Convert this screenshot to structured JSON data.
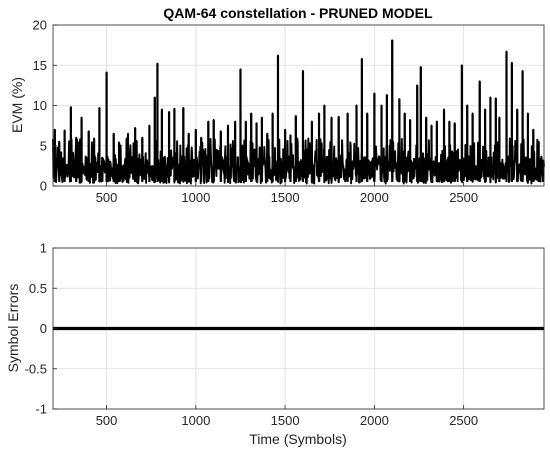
{
  "chart_data": [
    {
      "type": "line",
      "title": "QAM-64 constellation - PRUNED MODEL",
      "xlabel": "",
      "ylabel": "EVM (%)",
      "xlim": [
        200,
        2950
      ],
      "ylim": [
        0,
        20
      ],
      "xticks": [
        500,
        1000,
        1500,
        2000,
        2500
      ],
      "yticks": [
        0,
        5,
        10,
        15,
        20
      ],
      "grid": true,
      "series_color": "#000000",
      "peaks": [
        {
          "x": 210,
          "y": 7.0
        },
        {
          "x": 235,
          "y": 5.5
        },
        {
          "x": 265,
          "y": 6.9
        },
        {
          "x": 300,
          "y": 9.8
        },
        {
          "x": 330,
          "y": 6.0
        },
        {
          "x": 360,
          "y": 8.5
        },
        {
          "x": 400,
          "y": 6.8
        },
        {
          "x": 430,
          "y": 5.9
        },
        {
          "x": 460,
          "y": 9.7
        },
        {
          "x": 500,
          "y": 14.1
        },
        {
          "x": 540,
          "y": 6.5
        },
        {
          "x": 570,
          "y": 5.4
        },
        {
          "x": 620,
          "y": 6.5
        },
        {
          "x": 660,
          "y": 7.2
        },
        {
          "x": 700,
          "y": 6.0
        },
        {
          "x": 740,
          "y": 7.5
        },
        {
          "x": 770,
          "y": 11.0
        },
        {
          "x": 785,
          "y": 15.2
        },
        {
          "x": 810,
          "y": 9.5
        },
        {
          "x": 850,
          "y": 9.2
        },
        {
          "x": 880,
          "y": 9.6
        },
        {
          "x": 930,
          "y": 9.7
        },
        {
          "x": 960,
          "y": 6.5
        },
        {
          "x": 1000,
          "y": 7.0
        },
        {
          "x": 1030,
          "y": 6.0
        },
        {
          "x": 1070,
          "y": 8.0
        },
        {
          "x": 1100,
          "y": 8.2
        },
        {
          "x": 1140,
          "y": 6.8
        },
        {
          "x": 1180,
          "y": 7.5
        },
        {
          "x": 1220,
          "y": 8.0
        },
        {
          "x": 1250,
          "y": 14.5
        },
        {
          "x": 1280,
          "y": 8.0
        },
        {
          "x": 1310,
          "y": 9.0
        },
        {
          "x": 1340,
          "y": 7.8
        },
        {
          "x": 1370,
          "y": 8.5
        },
        {
          "x": 1400,
          "y": 6.5
        },
        {
          "x": 1430,
          "y": 9.0
        },
        {
          "x": 1460,
          "y": 16.2
        },
        {
          "x": 1500,
          "y": 7.0
        },
        {
          "x": 1530,
          "y": 6.3
        },
        {
          "x": 1560,
          "y": 8.7
        },
        {
          "x": 1600,
          "y": 14.3
        },
        {
          "x": 1650,
          "y": 8.0
        },
        {
          "x": 1690,
          "y": 9.0
        },
        {
          "x": 1720,
          "y": 10.0
        },
        {
          "x": 1760,
          "y": 8.5
        },
        {
          "x": 1800,
          "y": 8.6
        },
        {
          "x": 1850,
          "y": 9.0
        },
        {
          "x": 1900,
          "y": 10.0
        },
        {
          "x": 1930,
          "y": 15.8
        },
        {
          "x": 1960,
          "y": 9.0
        },
        {
          "x": 2000,
          "y": 11.5
        },
        {
          "x": 2040,
          "y": 10.0
        },
        {
          "x": 2070,
          "y": 11.3
        },
        {
          "x": 2100,
          "y": 18.1
        },
        {
          "x": 2140,
          "y": 10.8
        },
        {
          "x": 2170,
          "y": 9.0
        },
        {
          "x": 2200,
          "y": 8.2
        },
        {
          "x": 2240,
          "y": 12.5
        },
        {
          "x": 2260,
          "y": 14.8
        },
        {
          "x": 2290,
          "y": 8.5
        },
        {
          "x": 2320,
          "y": 7.5
        },
        {
          "x": 2350,
          "y": 8.0
        },
        {
          "x": 2390,
          "y": 9.5
        },
        {
          "x": 2420,
          "y": 8.0
        },
        {
          "x": 2450,
          "y": 7.8
        },
        {
          "x": 2490,
          "y": 15.0
        },
        {
          "x": 2520,
          "y": 10.0
        },
        {
          "x": 2550,
          "y": 9.0
        },
        {
          "x": 2590,
          "y": 13.0
        },
        {
          "x": 2620,
          "y": 9.5
        },
        {
          "x": 2650,
          "y": 11.0
        },
        {
          "x": 2680,
          "y": 10.9
        },
        {
          "x": 2700,
          "y": 8.5
        },
        {
          "x": 2740,
          "y": 16.7
        },
        {
          "x": 2770,
          "y": 15.3
        },
        {
          "x": 2800,
          "y": 9.5
        },
        {
          "x": 2830,
          "y": 14.3
        },
        {
          "x": 2860,
          "y": 9.0
        },
        {
          "x": 2890,
          "y": 7.0
        },
        {
          "x": 2920,
          "y": 5.5
        },
        {
          "x": 2945,
          "y": 3.0
        }
      ]
    },
    {
      "type": "line",
      "title": "",
      "xlabel": "Time (Symbols)",
      "ylabel": "Symbol Errors",
      "xlim": [
        200,
        2950
      ],
      "ylim": [
        -1,
        1
      ],
      "xticks": [
        500,
        1000,
        1500,
        2000,
        2500
      ],
      "yticks": [
        -1,
        -0.5,
        0,
        0.5,
        1
      ],
      "grid": true,
      "series_color": "#000000",
      "series": [
        {
          "x": [
            200,
            2950
          ],
          "y": [
            0,
            0
          ]
        }
      ]
    }
  ]
}
